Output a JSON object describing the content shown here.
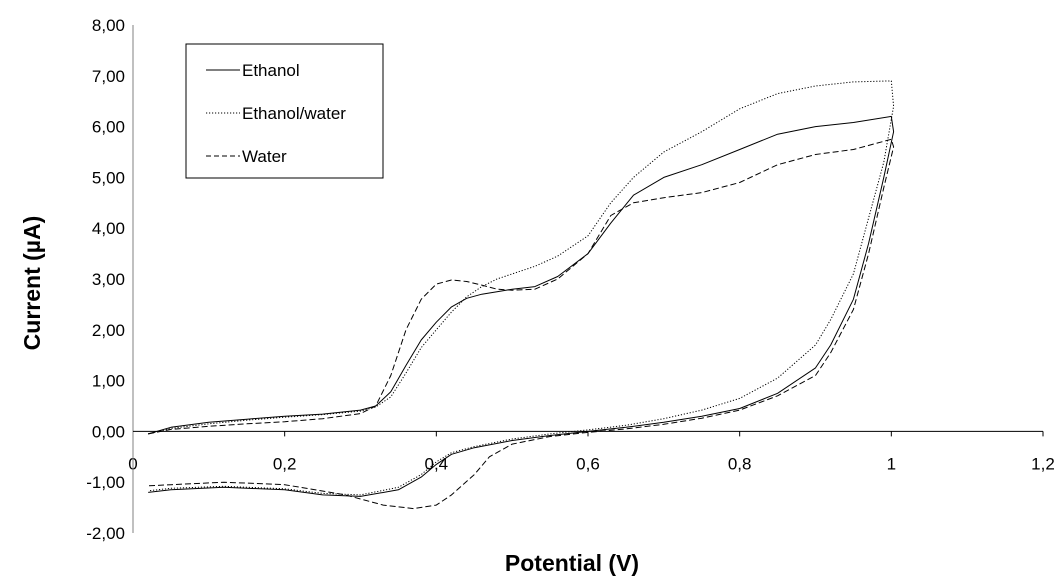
{
  "chart_data": {
    "type": "line",
    "title": "",
    "xlabel": "Potential (V)",
    "ylabel": "Current (µA)",
    "xlim": [
      0,
      1.2
    ],
    "ylim": [
      -2,
      8
    ],
    "x_ticks": [
      "0",
      "0,2",
      "0,4",
      "0,6",
      "0,8",
      "1",
      "1,2"
    ],
    "y_ticks": [
      "-2,00",
      "-1,00",
      "0,00",
      "1,00",
      "2,00",
      "3,00",
      "4,00",
      "5,00",
      "6,00",
      "7,00",
      "8,00"
    ],
    "grid": false,
    "legend_position": "top-left",
    "series": [
      {
        "name": "Ethanol",
        "style": "solid",
        "points": [
          [
            0.02,
            -0.05
          ],
          [
            0.05,
            0.08
          ],
          [
            0.1,
            0.18
          ],
          [
            0.15,
            0.24
          ],
          [
            0.2,
            0.3
          ],
          [
            0.25,
            0.34
          ],
          [
            0.3,
            0.42
          ],
          [
            0.32,
            0.5
          ],
          [
            0.34,
            0.78
          ],
          [
            0.36,
            1.3
          ],
          [
            0.38,
            1.8
          ],
          [
            0.4,
            2.15
          ],
          [
            0.42,
            2.45
          ],
          [
            0.44,
            2.62
          ],
          [
            0.46,
            2.7
          ],
          [
            0.48,
            2.75
          ],
          [
            0.5,
            2.8
          ],
          [
            0.53,
            2.85
          ],
          [
            0.56,
            3.05
          ],
          [
            0.6,
            3.5
          ],
          [
            0.63,
            4.1
          ],
          [
            0.66,
            4.65
          ],
          [
            0.7,
            5.0
          ],
          [
            0.75,
            5.25
          ],
          [
            0.8,
            5.55
          ],
          [
            0.85,
            5.85
          ],
          [
            0.9,
            6.0
          ],
          [
            0.95,
            6.08
          ],
          [
            1.0,
            6.2
          ],
          [
            1.003,
            5.9
          ],
          [
            0.99,
            5.0
          ],
          [
            0.97,
            3.7
          ],
          [
            0.95,
            2.6
          ],
          [
            0.92,
            1.7
          ],
          [
            0.9,
            1.25
          ],
          [
            0.85,
            0.75
          ],
          [
            0.8,
            0.45
          ],
          [
            0.75,
            0.3
          ],
          [
            0.7,
            0.18
          ],
          [
            0.65,
            0.08
          ],
          [
            0.6,
            0.0
          ],
          [
            0.55,
            -0.08
          ],
          [
            0.5,
            -0.18
          ],
          [
            0.45,
            -0.32
          ],
          [
            0.42,
            -0.45
          ],
          [
            0.4,
            -0.65
          ],
          [
            0.38,
            -0.9
          ],
          [
            0.35,
            -1.15
          ],
          [
            0.3,
            -1.28
          ],
          [
            0.25,
            -1.25
          ],
          [
            0.2,
            -1.15
          ],
          [
            0.12,
            -1.1
          ],
          [
            0.05,
            -1.15
          ],
          [
            0.02,
            -1.2
          ]
        ]
      },
      {
        "name": "Ethanol/water",
        "style": "dotted",
        "points": [
          [
            0.02,
            -0.05
          ],
          [
            0.05,
            0.06
          ],
          [
            0.1,
            0.15
          ],
          [
            0.15,
            0.22
          ],
          [
            0.2,
            0.28
          ],
          [
            0.25,
            0.33
          ],
          [
            0.3,
            0.4
          ],
          [
            0.32,
            0.48
          ],
          [
            0.34,
            0.68
          ],
          [
            0.36,
            1.15
          ],
          [
            0.38,
            1.65
          ],
          [
            0.4,
            2.0
          ],
          [
            0.42,
            2.35
          ],
          [
            0.44,
            2.65
          ],
          [
            0.46,
            2.85
          ],
          [
            0.48,
            3.0
          ],
          [
            0.5,
            3.1
          ],
          [
            0.53,
            3.25
          ],
          [
            0.56,
            3.45
          ],
          [
            0.6,
            3.85
          ],
          [
            0.63,
            4.5
          ],
          [
            0.66,
            5.0
          ],
          [
            0.7,
            5.5
          ],
          [
            0.75,
            5.9
          ],
          [
            0.8,
            6.35
          ],
          [
            0.85,
            6.65
          ],
          [
            0.9,
            6.8
          ],
          [
            0.95,
            6.88
          ],
          [
            1.0,
            6.9
          ],
          [
            1.003,
            6.4
          ],
          [
            0.99,
            5.3
          ],
          [
            0.97,
            4.2
          ],
          [
            0.95,
            3.1
          ],
          [
            0.92,
            2.2
          ],
          [
            0.9,
            1.7
          ],
          [
            0.85,
            1.05
          ],
          [
            0.8,
            0.65
          ],
          [
            0.75,
            0.42
          ],
          [
            0.7,
            0.25
          ],
          [
            0.65,
            0.12
          ],
          [
            0.6,
            0.03
          ],
          [
            0.55,
            -0.05
          ],
          [
            0.5,
            -0.15
          ],
          [
            0.45,
            -0.3
          ],
          [
            0.42,
            -0.42
          ],
          [
            0.4,
            -0.6
          ],
          [
            0.38,
            -0.85
          ],
          [
            0.35,
            -1.1
          ],
          [
            0.3,
            -1.25
          ],
          [
            0.25,
            -1.22
          ],
          [
            0.2,
            -1.13
          ],
          [
            0.12,
            -1.08
          ],
          [
            0.05,
            -1.12
          ],
          [
            0.02,
            -1.17
          ]
        ]
      },
      {
        "name": "Water",
        "style": "dashed",
        "points": [
          [
            0.02,
            -0.05
          ],
          [
            0.05,
            0.04
          ],
          [
            0.1,
            0.1
          ],
          [
            0.15,
            0.15
          ],
          [
            0.2,
            0.19
          ],
          [
            0.25,
            0.25
          ],
          [
            0.3,
            0.35
          ],
          [
            0.32,
            0.5
          ],
          [
            0.34,
            1.1
          ],
          [
            0.36,
            2.0
          ],
          [
            0.38,
            2.6
          ],
          [
            0.4,
            2.9
          ],
          [
            0.42,
            2.98
          ],
          [
            0.44,
            2.95
          ],
          [
            0.46,
            2.88
          ],
          [
            0.48,
            2.8
          ],
          [
            0.5,
            2.78
          ],
          [
            0.53,
            2.8
          ],
          [
            0.56,
            3.0
          ],
          [
            0.6,
            3.5
          ],
          [
            0.63,
            4.25
          ],
          [
            0.66,
            4.5
          ],
          [
            0.7,
            4.6
          ],
          [
            0.75,
            4.7
          ],
          [
            0.8,
            4.9
          ],
          [
            0.85,
            5.25
          ],
          [
            0.9,
            5.45
          ],
          [
            0.95,
            5.55
          ],
          [
            1.0,
            5.75
          ],
          [
            1.003,
            5.6
          ],
          [
            0.99,
            4.8
          ],
          [
            0.97,
            3.5
          ],
          [
            0.95,
            2.4
          ],
          [
            0.92,
            1.55
          ],
          [
            0.9,
            1.1
          ],
          [
            0.85,
            0.7
          ],
          [
            0.8,
            0.42
          ],
          [
            0.75,
            0.26
          ],
          [
            0.7,
            0.14
          ],
          [
            0.65,
            0.05
          ],
          [
            0.6,
            -0.02
          ],
          [
            0.55,
            -0.1
          ],
          [
            0.5,
            -0.25
          ],
          [
            0.47,
            -0.5
          ],
          [
            0.45,
            -0.85
          ],
          [
            0.42,
            -1.25
          ],
          [
            0.4,
            -1.45
          ],
          [
            0.37,
            -1.52
          ],
          [
            0.33,
            -1.45
          ],
          [
            0.28,
            -1.25
          ],
          [
            0.2,
            -1.05
          ],
          [
            0.12,
            -1.0
          ],
          [
            0.05,
            -1.05
          ],
          [
            0.02,
            -1.07
          ]
        ]
      }
    ]
  }
}
